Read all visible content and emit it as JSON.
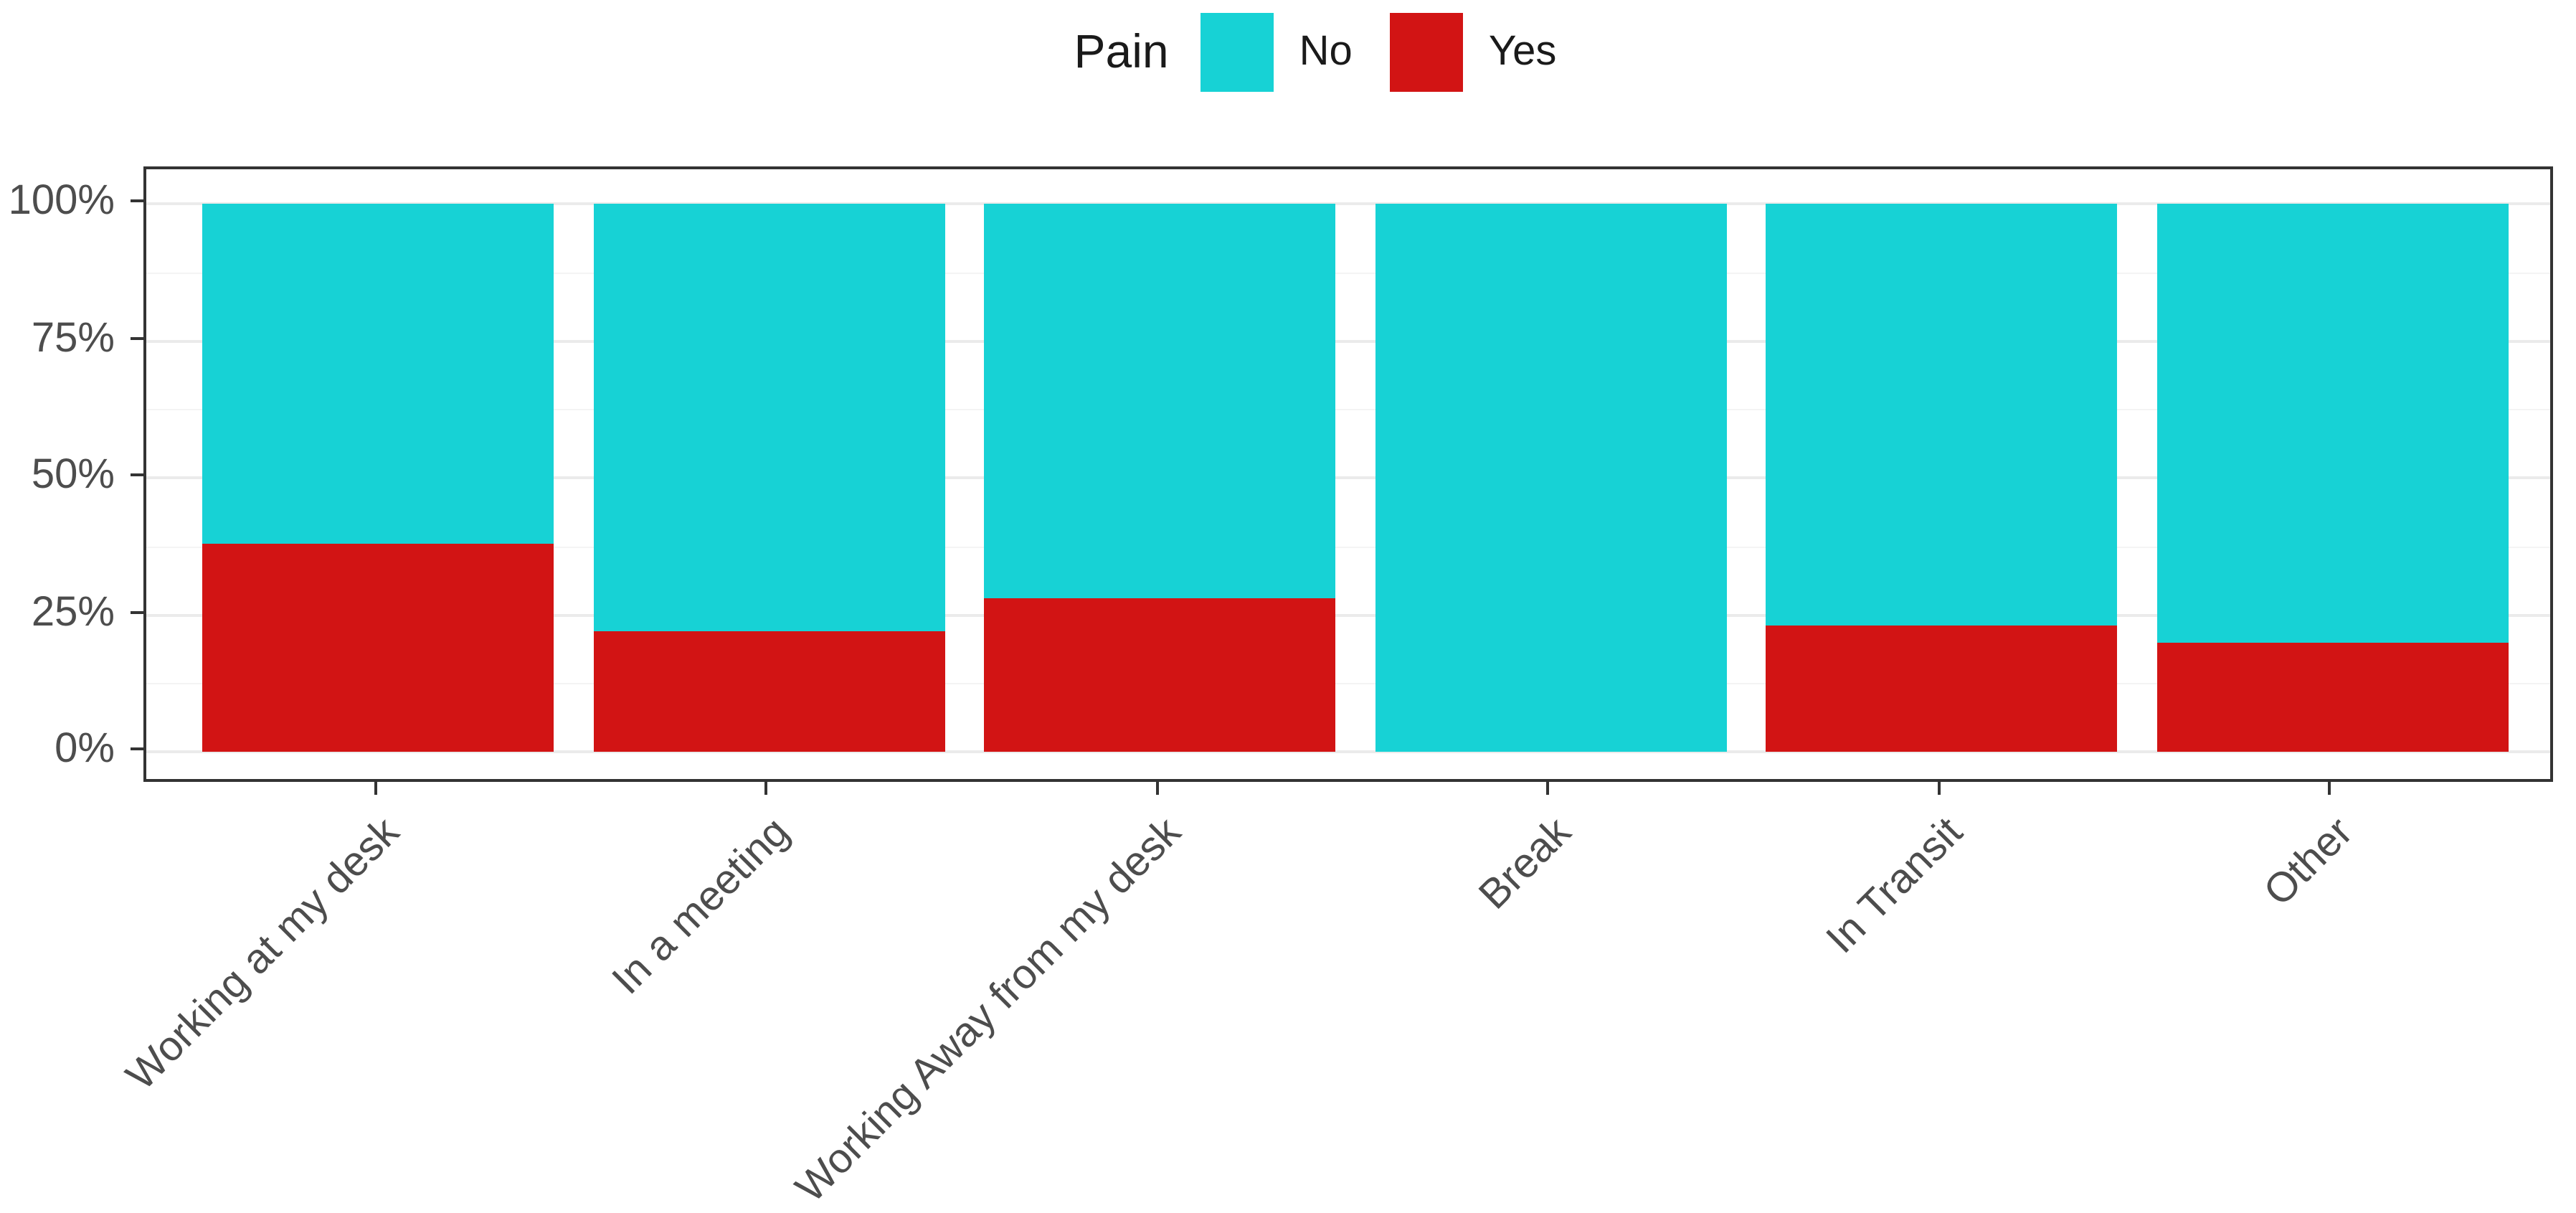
{
  "chart_data": {
    "type": "bar",
    "variant": "stacked-100-percent",
    "title": "",
    "legend": {
      "title": "Pain",
      "position": "top-center",
      "entries": [
        {
          "label": "No",
          "color": "#17D2D5"
        },
        {
          "label": "Yes",
          "color": "#D21414"
        }
      ]
    },
    "categories": [
      "Working at my desk",
      "In a meeting",
      "Working Away from my desk",
      "Break",
      "In Transit",
      "Other"
    ],
    "series": [
      {
        "name": "No",
        "color": "#17D2D5",
        "values": [
          62,
          78,
          72,
          100,
          77,
          80
        ]
      },
      {
        "name": "Yes",
        "color": "#D21414",
        "values": [
          38,
          22,
          28,
          0,
          23,
          20
        ]
      }
    ],
    "y_axis": {
      "range": [
        0,
        100
      ],
      "unit": "%",
      "major_ticks": [
        0,
        25,
        50,
        75,
        100
      ],
      "tick_labels": [
        "0%",
        "25%",
        "50%",
        "75%",
        "100%"
      ],
      "minor_ticks": [
        12.5,
        37.5,
        62.5,
        87.5
      ],
      "grid": true
    },
    "x_axis": {
      "label_angle_deg": 45
    }
  },
  "colors": {
    "background": "#FFFFFF",
    "panel_border": "#333333",
    "grid_major": "#EBEBEB",
    "grid_minor": "#F4F4F4",
    "axis_text": "#4D4D4D",
    "legend_text": "#1A1A1A",
    "tick": "#333333"
  }
}
